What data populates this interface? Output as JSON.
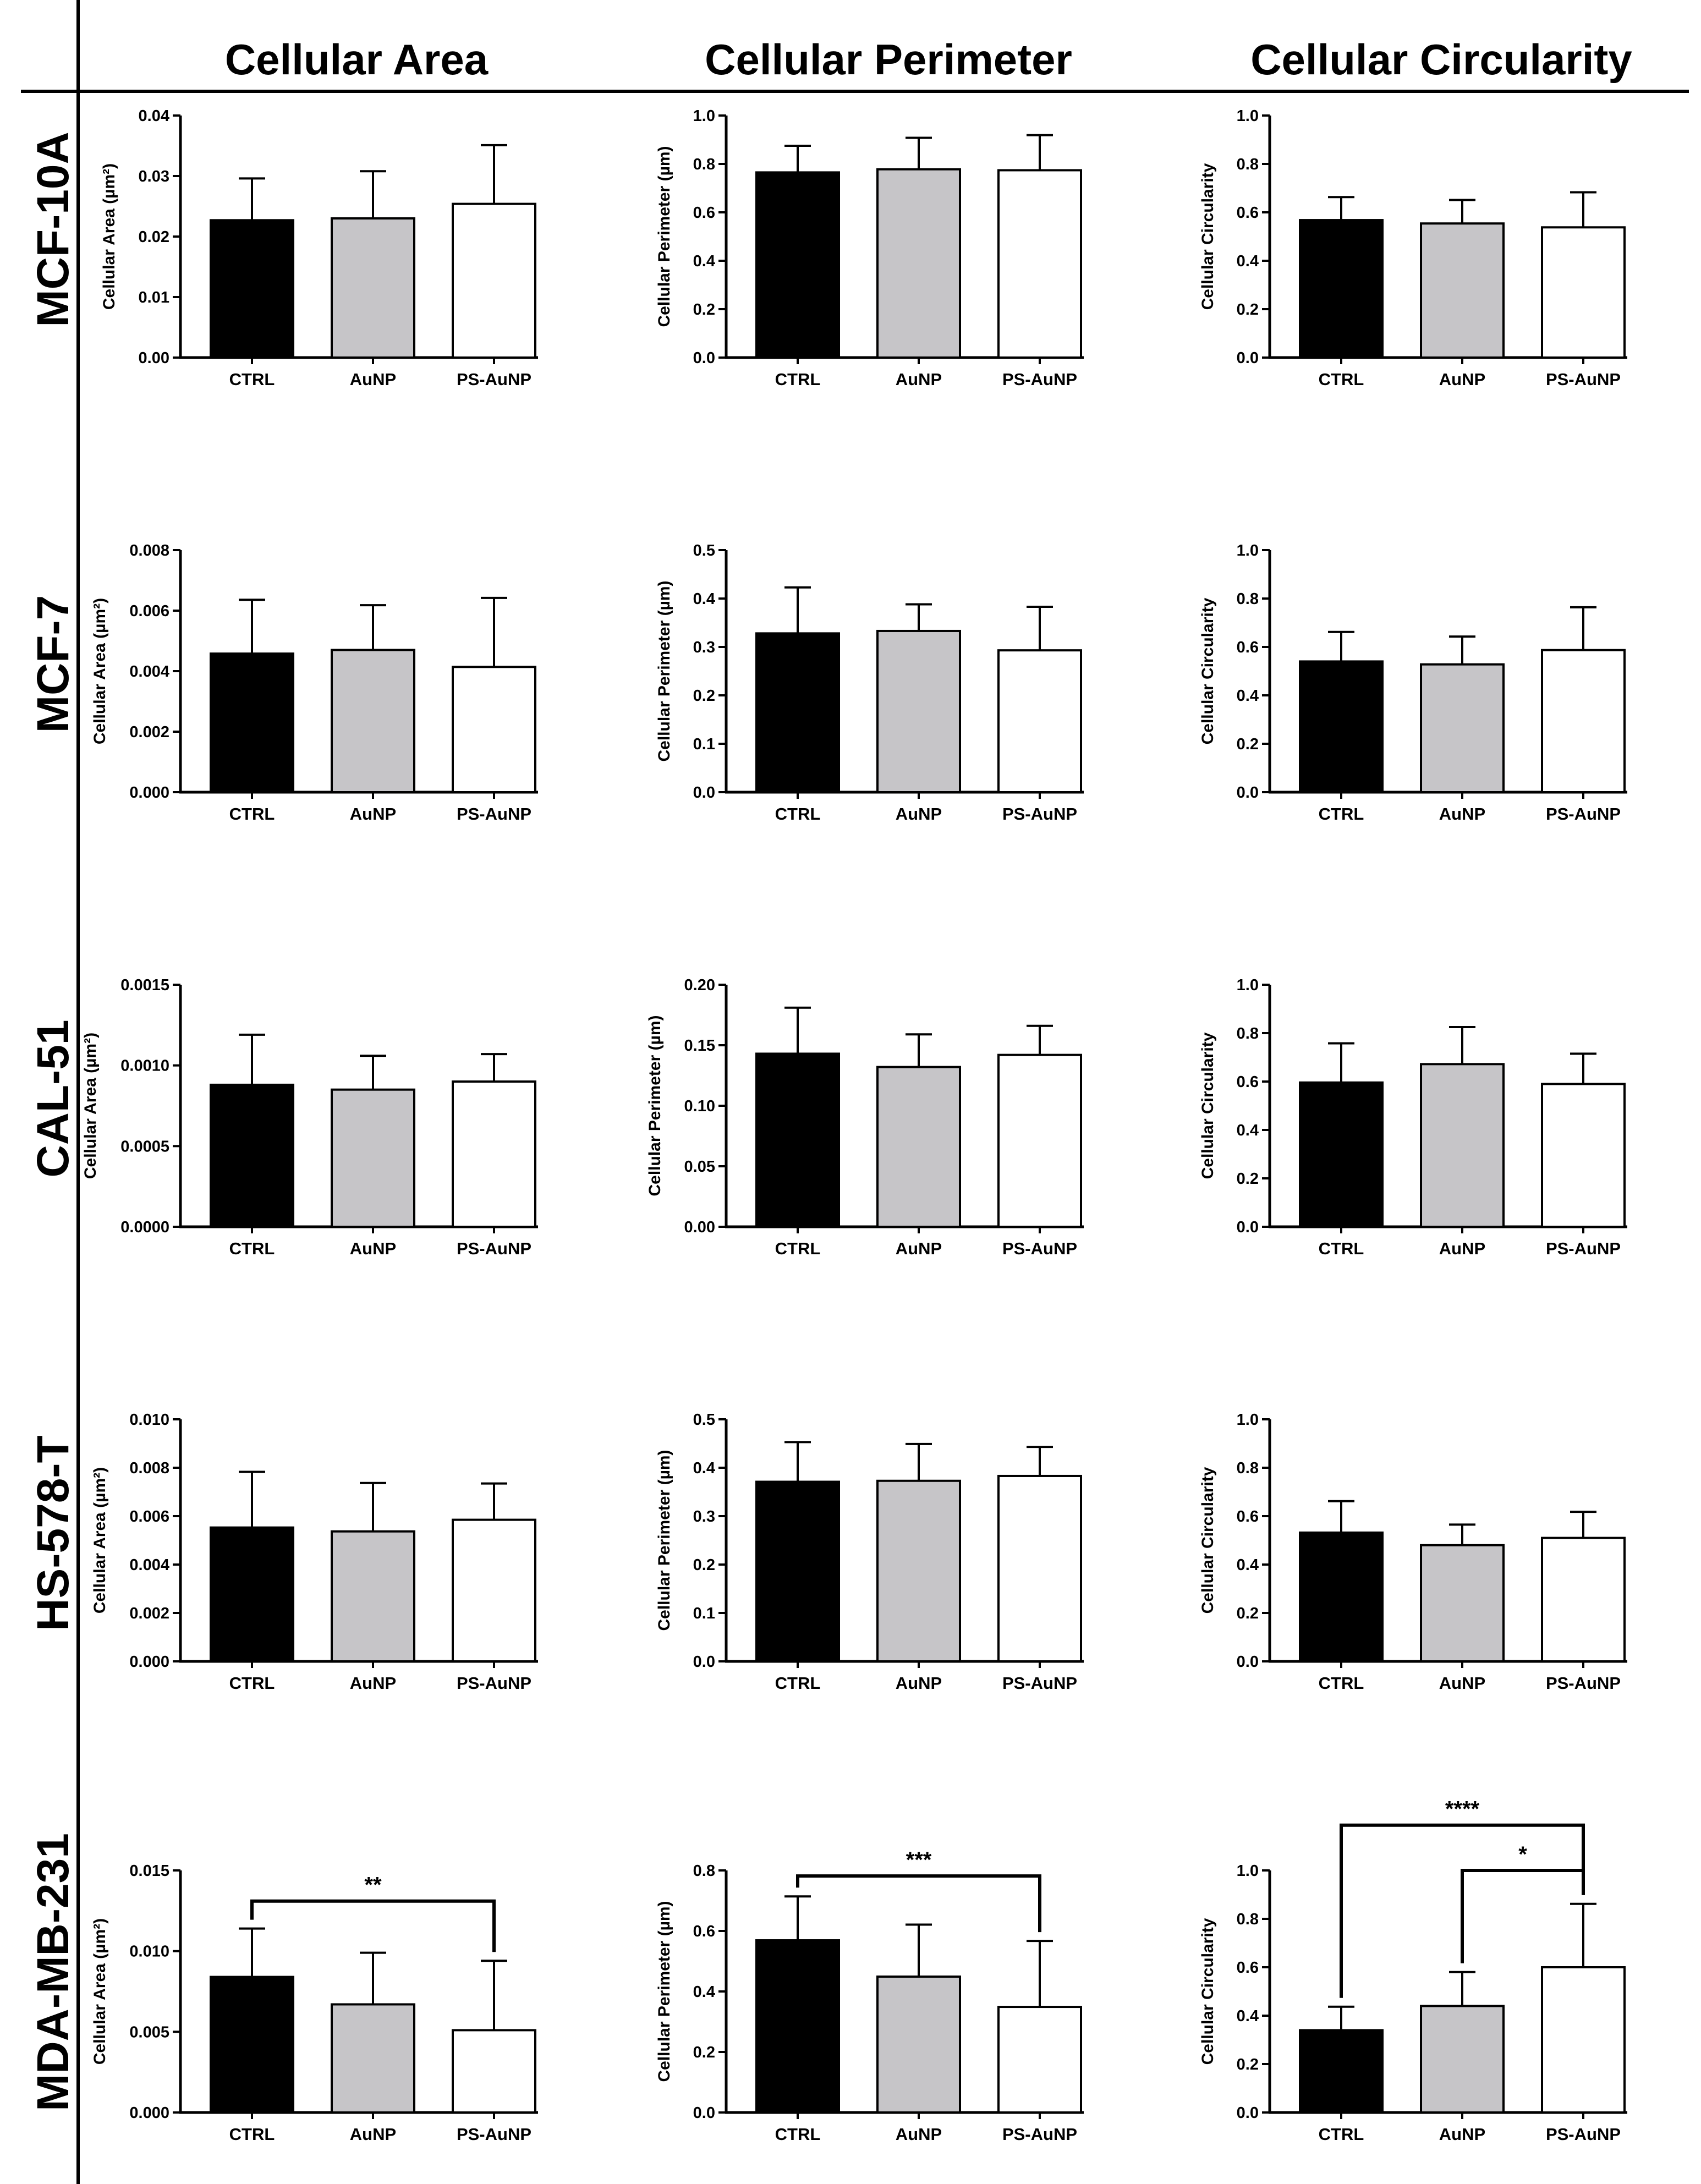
{
  "columns": [
    "Cellular Area",
    "Cellular Perimeter",
    "Cellular Circularity"
  ],
  "rows": [
    "MCF-10A",
    "MCF-7",
    "CAL-51",
    "HS-578-T",
    "MDA-MB-231"
  ],
  "colors": {
    "CTRL": "#000000",
    "AuNP": "#c6c5c8",
    "PS-AuNP": "#ffffff",
    "axis": "#000000"
  },
  "chart_data": [
    {
      "type": "bar",
      "row": "MCF-10A",
      "column": "Cellular Area",
      "ylabel": "Cellular Area (µm²)",
      "categories": [
        "CTRL",
        "AuNP",
        "PS-AuNP"
      ],
      "values": [
        0.0227,
        0.023,
        0.0254
      ],
      "errors": [
        0.0069,
        0.0078,
        0.0097
      ],
      "ylim": [
        0,
        0.04
      ],
      "yticks": [
        0,
        0.01,
        0.02,
        0.03,
        0.04
      ],
      "ytick_labels": [
        "0.00",
        "0.01",
        "0.02",
        "0.03",
        "0.04"
      ],
      "significance": []
    },
    {
      "type": "bar",
      "row": "MCF-10A",
      "column": "Cellular Perimeter",
      "ylabel": "Cellular Perimeter (µm)",
      "categories": [
        "CTRL",
        "AuNP",
        "PS-AuNP"
      ],
      "values": [
        0.765,
        0.778,
        0.774
      ],
      "errors": [
        0.11,
        0.13,
        0.145
      ],
      "ylim": [
        0,
        1.0
      ],
      "yticks": [
        0,
        0.2,
        0.4,
        0.6,
        0.8,
        1.0
      ],
      "ytick_labels": [
        "0.0",
        "0.2",
        "0.4",
        "0.6",
        "0.8",
        "1.0"
      ],
      "significance": []
    },
    {
      "type": "bar",
      "row": "MCF-10A",
      "column": "Cellular Circularity",
      "ylabel": "Cellular Circularity",
      "categories": [
        "CTRL",
        "AuNP",
        "PS-AuNP"
      ],
      "values": [
        0.568,
        0.554,
        0.538
      ],
      "errors": [
        0.095,
        0.097,
        0.145
      ],
      "ylim": [
        0,
        1.0
      ],
      "yticks": [
        0,
        0.2,
        0.4,
        0.6,
        0.8,
        1.0
      ],
      "ytick_labels": [
        "0.0",
        "0.2",
        "0.4",
        "0.6",
        "0.8",
        "1.0"
      ],
      "significance": []
    },
    {
      "type": "bar",
      "row": "MCF-7",
      "column": "Cellular Area",
      "ylabel": "Cellular Area (µm²)",
      "categories": [
        "CTRL",
        "AuNP",
        "PS-AuNP"
      ],
      "values": [
        0.00458,
        0.0047,
        0.00414
      ],
      "errors": [
        0.00178,
        0.00148,
        0.00228
      ],
      "ylim": [
        0,
        0.008
      ],
      "yticks": [
        0,
        0.002,
        0.004,
        0.006,
        0.008
      ],
      "ytick_labels": [
        "0.000",
        "0.002",
        "0.004",
        "0.006",
        "0.008"
      ],
      "significance": []
    },
    {
      "type": "bar",
      "row": "MCF-7",
      "column": "Cellular Perimeter",
      "ylabel": "Cellular Perimeter (µm)",
      "categories": [
        "CTRL",
        "AuNP",
        "PS-AuNP"
      ],
      "values": [
        0.328,
        0.333,
        0.293
      ],
      "errors": [
        0.095,
        0.055,
        0.09
      ],
      "ylim": [
        0,
        0.5
      ],
      "yticks": [
        0,
        0.1,
        0.2,
        0.3,
        0.4,
        0.5
      ],
      "ytick_labels": [
        "0.0",
        "0.1",
        "0.2",
        "0.3",
        "0.4",
        "0.5"
      ],
      "significance": []
    },
    {
      "type": "bar",
      "row": "MCF-7",
      "column": "Cellular Circularity",
      "ylabel": "Cellular Circularity",
      "categories": [
        "CTRL",
        "AuNP",
        "PS-AuNP"
      ],
      "values": [
        0.54,
        0.528,
        0.587
      ],
      "errors": [
        0.122,
        0.115,
        0.177
      ],
      "ylim": [
        0,
        1.0
      ],
      "yticks": [
        0,
        0.2,
        0.4,
        0.6,
        0.8,
        1.0
      ],
      "ytick_labels": [
        "0.0",
        "0.2",
        "0.4",
        "0.6",
        "0.8",
        "1.0"
      ],
      "significance": []
    },
    {
      "type": "bar",
      "row": "CAL-51",
      "column": "Cellular Area",
      "ylabel": "Cellular Area (µm²)",
      "categories": [
        "CTRL",
        "AuNP",
        "PS-AuNP"
      ],
      "values": [
        0.00088,
        0.00085,
        0.0009
      ],
      "errors": [
        0.00031,
        0.00021,
        0.00017
      ],
      "ylim": [
        0,
        0.0015
      ],
      "yticks": [
        0,
        0.0005,
        0.001,
        0.0015
      ],
      "ytick_labels": [
        "0.0000",
        "0.0005",
        "0.0010",
        "0.0015"
      ],
      "significance": []
    },
    {
      "type": "bar",
      "row": "CAL-51",
      "column": "Cellular Perimeter",
      "ylabel": "Cellular Perimeter (µm)",
      "categories": [
        "CTRL",
        "AuNP",
        "PS-AuNP"
      ],
      "values": [
        0.143,
        0.132,
        0.142
      ],
      "errors": [
        0.038,
        0.027,
        0.024
      ],
      "ylim": [
        0,
        0.2
      ],
      "yticks": [
        0,
        0.05,
        0.1,
        0.15,
        0.2
      ],
      "ytick_labels": [
        "0.00",
        "0.05",
        "0.10",
        "0.15",
        "0.20"
      ],
      "significance": []
    },
    {
      "type": "bar",
      "row": "CAL-51",
      "column": "Cellular Circularity",
      "ylabel": "Cellular Circularity",
      "categories": [
        "CTRL",
        "AuNP",
        "PS-AuNP"
      ],
      "values": [
        0.596,
        0.672,
        0.59
      ],
      "errors": [
        0.162,
        0.153,
        0.125
      ],
      "ylim": [
        0,
        1.0
      ],
      "yticks": [
        0,
        0.2,
        0.4,
        0.6,
        0.8,
        1.0
      ],
      "ytick_labels": [
        "0.0",
        "0.2",
        "0.4",
        "0.6",
        "0.8",
        "1.0"
      ],
      "significance": []
    },
    {
      "type": "bar",
      "row": "HS-578-T",
      "column": "Cellular Area",
      "ylabel": "Cellular Area (µm²)",
      "categories": [
        "CTRL",
        "AuNP",
        "PS-AuNP"
      ],
      "values": [
        0.00553,
        0.00537,
        0.00585
      ],
      "errors": [
        0.0023,
        0.002,
        0.0015
      ],
      "ylim": [
        0,
        0.01
      ],
      "yticks": [
        0,
        0.002,
        0.004,
        0.006,
        0.008,
        0.01
      ],
      "ytick_labels": [
        "0.000",
        "0.002",
        "0.004",
        "0.006",
        "0.008",
        "0.010"
      ],
      "significance": []
    },
    {
      "type": "bar",
      "row": "HS-578-T",
      "column": "Cellular Perimeter",
      "ylabel": "Cellular Perimeter (µm)",
      "categories": [
        "CTRL",
        "AuNP",
        "PS-AuNP"
      ],
      "values": [
        0.371,
        0.373,
        0.383
      ],
      "errors": [
        0.082,
        0.076,
        0.06
      ],
      "ylim": [
        0,
        0.5
      ],
      "yticks": [
        0,
        0.1,
        0.2,
        0.3,
        0.4,
        0.5
      ],
      "ytick_labels": [
        "0.0",
        "0.1",
        "0.2",
        "0.3",
        "0.4",
        "0.5"
      ],
      "significance": []
    },
    {
      "type": "bar",
      "row": "HS-578-T",
      "column": "Cellular Circularity",
      "ylabel": "Cellular Circularity",
      "categories": [
        "CTRL",
        "AuNP",
        "PS-AuNP"
      ],
      "values": [
        0.532,
        0.48,
        0.51
      ],
      "errors": [
        0.13,
        0.085,
        0.108
      ],
      "ylim": [
        0,
        1.0
      ],
      "yticks": [
        0,
        0.2,
        0.4,
        0.6,
        0.8,
        1.0
      ],
      "ytick_labels": [
        "0.0",
        "0.2",
        "0.4",
        "0.6",
        "0.8",
        "1.0"
      ],
      "significance": []
    },
    {
      "type": "bar",
      "row": "MDA-MB-231",
      "column": "Cellular Area",
      "ylabel": "Cellular Area (µm²)",
      "categories": [
        "CTRL",
        "AuNP",
        "PS-AuNP"
      ],
      "values": [
        0.0084,
        0.0067,
        0.0051
      ],
      "errors": [
        0.003,
        0.0032,
        0.0043
      ],
      "ylim": [
        0,
        0.015
      ],
      "yticks": [
        0,
        0.005,
        0.01,
        0.015
      ],
      "ytick_labels": [
        "0.000",
        "0.005",
        "0.010",
        "0.015"
      ],
      "significance": [
        {
          "from": "CTRL",
          "to": "PS-AuNP",
          "label": "**",
          "level": 0.0131
        }
      ]
    },
    {
      "type": "bar",
      "row": "MDA-MB-231",
      "column": "Cellular Perimeter",
      "ylabel": "Cellular Perimeter (µm)",
      "categories": [
        "CTRL",
        "AuNP",
        "PS-AuNP"
      ],
      "values": [
        0.569,
        0.449,
        0.349
      ],
      "errors": [
        0.145,
        0.172,
        0.218
      ],
      "ylim": [
        0,
        0.8
      ],
      "yticks": [
        0,
        0.2,
        0.4,
        0.6,
        0.8
      ],
      "ytick_labels": [
        "0.0",
        "0.2",
        "0.4",
        "0.6",
        "0.8"
      ],
      "significance": [
        {
          "from": "CTRL",
          "to": "PS-AuNP",
          "label": "***",
          "level": 0.7817
        }
      ]
    },
    {
      "type": "bar",
      "row": "MDA-MB-231",
      "column": "Cellular Circularity",
      "ylabel": "Cellular Circularity",
      "categories": [
        "CTRL",
        "AuNP",
        "PS-AuNP"
      ],
      "values": [
        0.34,
        0.44,
        0.6
      ],
      "errors": [
        0.097,
        0.14,
        0.262
      ],
      "ylim": [
        0,
        1.0
      ],
      "yticks": [
        0,
        0.2,
        0.4,
        0.6,
        0.8,
        1.0
      ],
      "ytick_labels": [
        "0.0",
        "0.2",
        "0.4",
        "0.6",
        "0.8",
        "1.0"
      ],
      "significance": [
        {
          "from": "CTRL",
          "to": "PS-AuNP",
          "label": "****",
          "level": 1.187
        },
        {
          "from": "AuNP",
          "to": "PS-AuNP",
          "label": "*",
          "level": 1.0
        }
      ]
    }
  ]
}
